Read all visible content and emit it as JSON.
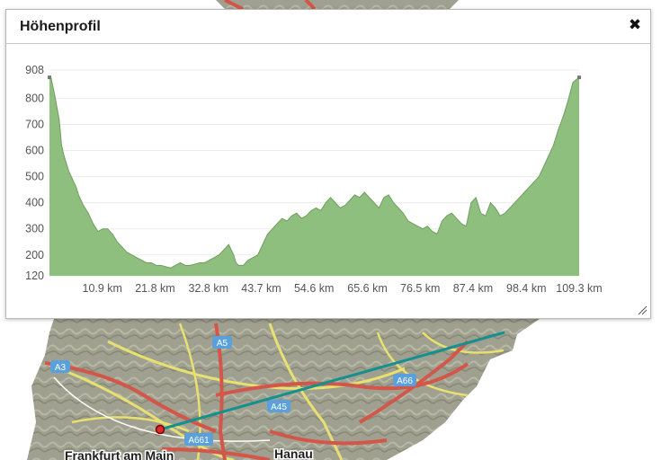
{
  "dialog": {
    "title": "Höhenprofil",
    "close_icon": "close-icon",
    "resize_icon": "resize-grip-icon"
  },
  "chart_data": {
    "type": "area",
    "title": "",
    "xlabel": "",
    "ylabel": "",
    "x_unit": "km",
    "x_tick_labels": [
      "10.9 km",
      "21.8 km",
      "32.8 km",
      "43.7 km",
      "54.6 km",
      "65.6 km",
      "76.5 km",
      "87.4 km",
      "98.4 km",
      "109.3 km"
    ],
    "y_tick_labels": [
      "908",
      "800",
      "700",
      "600",
      "500",
      "400",
      "300",
      "200",
      "120"
    ],
    "xlim": [
      0,
      109.3
    ],
    "ylim": [
      120,
      908
    ],
    "grid": true,
    "fill_color": "#8fbf7f",
    "line_color": "#6f9f5f",
    "series": [
      {
        "x": [
          0,
          0.3,
          1,
          2,
          2.5,
          3,
          4,
          5,
          5.5,
          6,
          7,
          8,
          9,
          10,
          11,
          12,
          13,
          14,
          15,
          16,
          17,
          18,
          19,
          20,
          21,
          22,
          23,
          24,
          25,
          26,
          27,
          28,
          29,
          30,
          31,
          32,
          33,
          34,
          35,
          36,
          37,
          38,
          38.5,
          39,
          40,
          41,
          42,
          43,
          44,
          45,
          46,
          47,
          48,
          49,
          50,
          51,
          52,
          53,
          54,
          55,
          56,
          57,
          58,
          59,
          60,
          61,
          62,
          63,
          64,
          65,
          66,
          67,
          68,
          69,
          70,
          71,
          72,
          73,
          74,
          75,
          76,
          77,
          78,
          79,
          80,
          81,
          82,
          83,
          84,
          85,
          86,
          87,
          88,
          89,
          90,
          91,
          92,
          93,
          94,
          95,
          96,
          97,
          98,
          99,
          100,
          101,
          102,
          103,
          104,
          105,
          106,
          107,
          108,
          108.6,
          109.3
        ],
        "y": [
          880,
          880,
          820,
          720,
          620,
          580,
          520,
          480,
          460,
          430,
          390,
          360,
          320,
          290,
          300,
          300,
          280,
          250,
          230,
          210,
          200,
          190,
          180,
          170,
          170,
          160,
          160,
          155,
          150,
          160,
          170,
          160,
          160,
          165,
          170,
          170,
          180,
          190,
          200,
          220,
          240,
          200,
          170,
          160,
          160,
          180,
          190,
          200,
          240,
          280,
          300,
          320,
          340,
          330,
          350,
          360,
          340,
          350,
          370,
          380,
          370,
          400,
          420,
          400,
          380,
          390,
          410,
          430,
          420,
          440,
          420,
          400,
          380,
          420,
          430,
          400,
          380,
          360,
          330,
          320,
          310,
          300,
          310,
          290,
          280,
          330,
          350,
          360,
          340,
          320,
          310,
          400,
          420,
          360,
          350,
          400,
          380,
          350,
          360,
          380,
          400,
          420,
          440,
          460,
          480,
          500,
          540,
          580,
          620,
          680,
          730,
          790,
          860,
          870,
          880
        ]
      }
    ]
  },
  "map": {
    "road_labels": [
      "A5",
      "A3",
      "A45",
      "A66",
      "A661"
    ],
    "city_labels": [
      "Frankfurt am Main",
      "Hanau"
    ]
  }
}
